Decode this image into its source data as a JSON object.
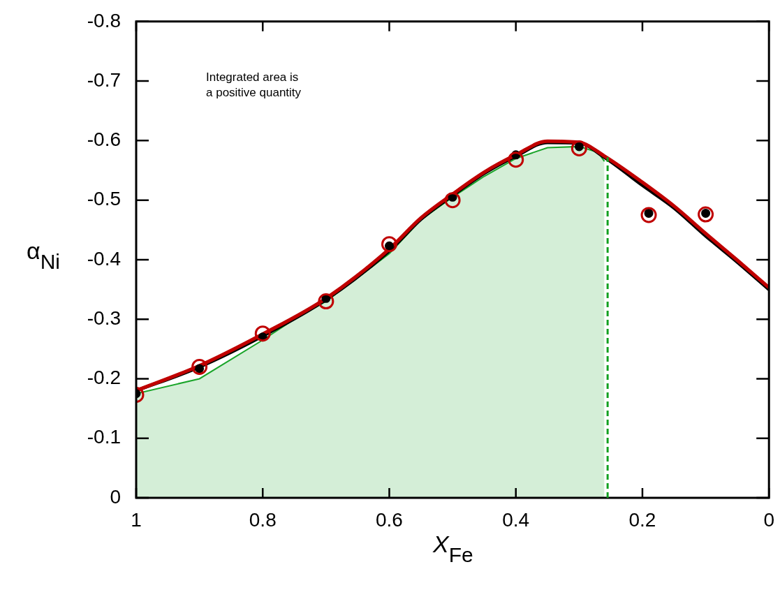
{
  "chart_data": {
    "type": "line",
    "xlabel": "X$_{Fe}$",
    "ylabel": "α$_{Ni}$",
    "xlim": [
      1,
      0
    ],
    "xticks": [
      1,
      0.8,
      0.6,
      0.4,
      0.2,
      0
    ],
    "ylim": [
      0,
      -0.8
    ],
    "yticks": [
      0,
      -0.1,
      -0.2,
      -0.3,
      -0.4,
      -0.5,
      -0.6,
      -0.7,
      -0.8
    ],
    "grid": false,
    "legend": false,
    "annotations": [
      "Integrated area is\na positive quantity"
    ],
    "ref_lines": [
      {
        "axis": "x",
        "value": 0.255,
        "color": "#10a020",
        "line_style": "dashed"
      }
    ],
    "series": [
      {
        "type": "area",
        "color": "#1aa52a",
        "x": [
          1,
          0.9,
          0.8,
          0.75,
          0.7,
          0.6,
          0.55,
          0.5,
          0.45,
          0.4,
          0.35,
          0.3,
          0.27,
          0.26
        ],
        "values": [
          -0.175,
          -0.2,
          -0.265,
          -0.3,
          -0.33,
          -0.41,
          -0.467,
          -0.505,
          -0.54,
          -0.57,
          -0.588,
          -0.59,
          -0.58,
          -0.565
        ]
      },
      {
        "type": "line",
        "color": "#000000",
        "x": [
          1,
          0.9,
          0.8,
          0.7,
          0.6,
          0.55,
          0.5,
          0.45,
          0.4,
          0.35,
          0.3,
          0.26,
          0.2,
          0.15,
          0.1,
          0.05,
          0
        ],
        "values": [
          -0.18,
          -0.22,
          -0.272,
          -0.333,
          -0.415,
          -0.468,
          -0.508,
          -0.545,
          -0.574,
          -0.597,
          -0.596,
          -0.572,
          -0.525,
          -0.487,
          -0.44,
          -0.396,
          -0.35
        ]
      },
      {
        "type": "line",
        "color": "#c00000",
        "x": [
          1,
          0.9,
          0.8,
          0.7,
          0.6,
          0.55,
          0.5,
          0.45,
          0.4,
          0.35,
          0.3,
          0.26,
          0.2,
          0.15,
          0.1,
          0.05,
          0
        ],
        "values": [
          -0.18,
          -0.222,
          -0.275,
          -0.335,
          -0.418,
          -0.47,
          -0.51,
          -0.547,
          -0.576,
          -0.599,
          -0.597,
          -0.574,
          -0.53,
          -0.49,
          -0.444,
          -0.399,
          -0.353
        ]
      },
      {
        "type": "scatter",
        "marker": "circle",
        "color": "#000000",
        "x": [
          1,
          0.9,
          0.8,
          0.7,
          0.6,
          0.5,
          0.4,
          0.3,
          0.19,
          0.1
        ],
        "values": [
          -0.175,
          -0.217,
          -0.27,
          -0.335,
          -0.423,
          -0.505,
          -0.576,
          -0.59,
          -0.478,
          -0.478
        ]
      },
      {
        "type": "scatter",
        "marker": "circle",
        "color": "#c00000",
        "x": [
          1,
          0.9,
          0.8,
          0.7,
          0.6,
          0.5,
          0.4,
          0.3,
          0.19,
          0.1
        ],
        "values": [
          -0.173,
          -0.22,
          -0.276,
          -0.33,
          -0.426,
          -0.5,
          -0.568,
          -0.587,
          -0.475,
          -0.476
        ]
      }
    ]
  }
}
